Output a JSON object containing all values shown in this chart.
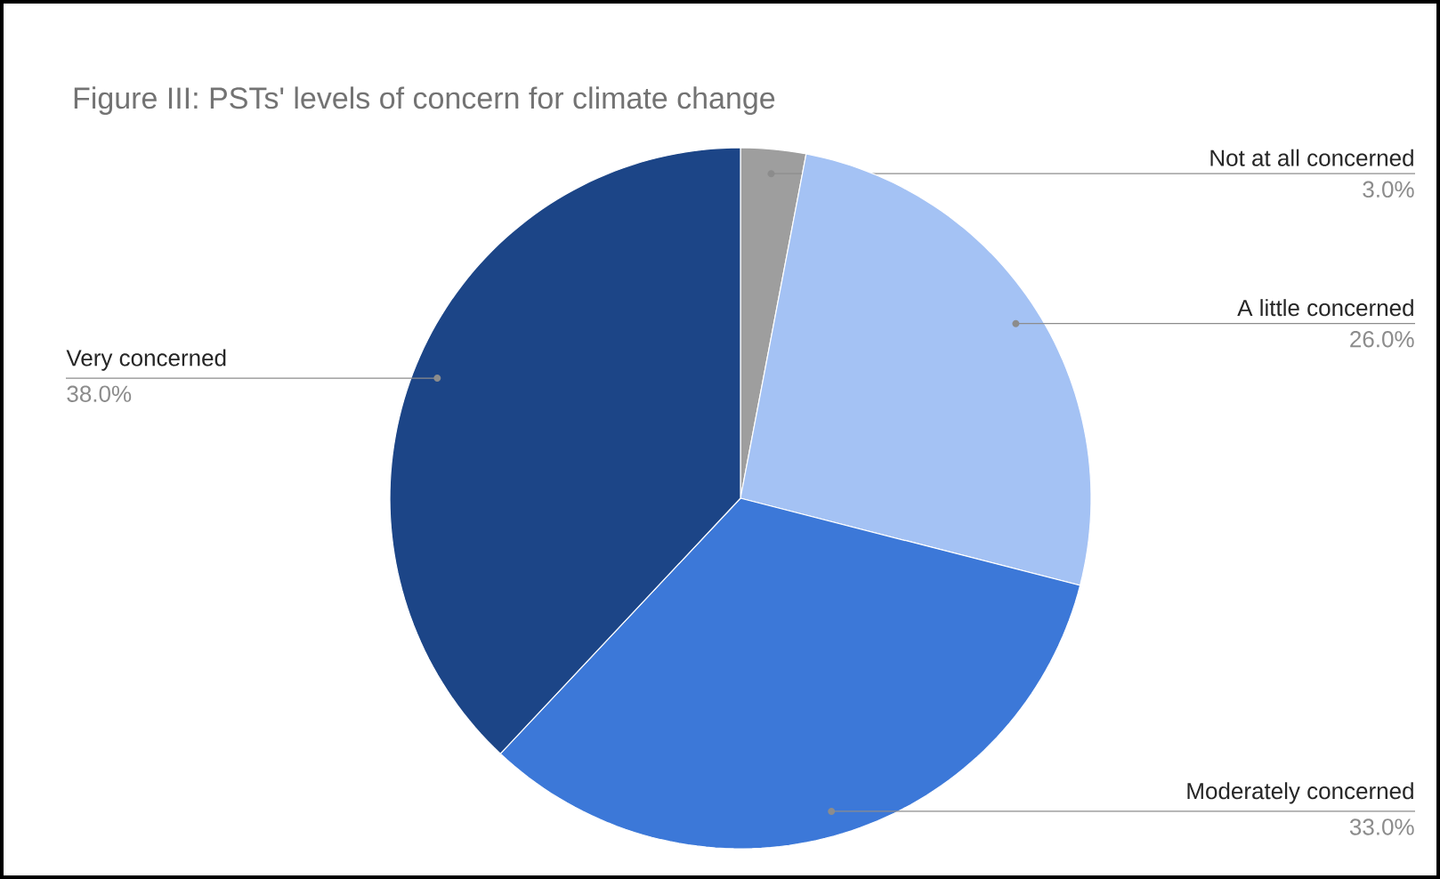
{
  "chart_data": {
    "type": "pie",
    "title": "Figure III: PSTs' levels of concern for climate change",
    "categories": [
      "Not at all concerned",
      "A little concerned",
      "Moderately concerned",
      "Very concerned"
    ],
    "values": [
      3,
      26,
      33,
      38
    ],
    "colors": [
      "#9e9e9e",
      "#a4c2f4",
      "#3c78d8",
      "#1c4587"
    ],
    "value_labels": [
      "3.0%",
      "26.0%",
      "33.0%",
      "38.0%"
    ]
  }
}
